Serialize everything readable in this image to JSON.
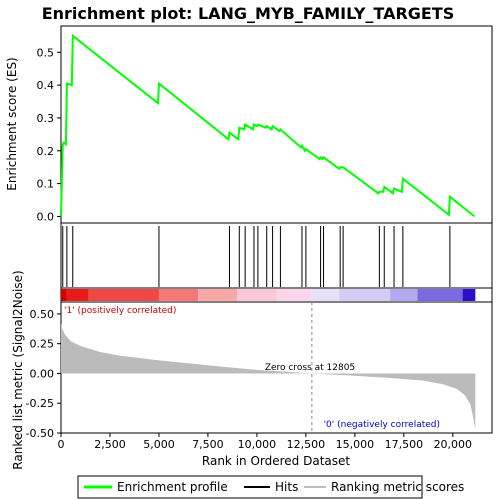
{
  "chart_data": {
    "type": "line",
    "title": "Enrichment plot: LANG_MYB_FAMILY_TARGETS",
    "top_panel": {
      "ylabel": "Enrichment score (ES)",
      "ylim": [
        -0.02,
        0.58
      ],
      "yticks": [
        0.0,
        0.1,
        0.2,
        0.3,
        0.4,
        0.5
      ],
      "ytick_labels": [
        "0.0",
        "0.1",
        "0.2",
        "0.3",
        "0.4",
        "0.5"
      ],
      "series": [
        {
          "name": "Enrichment profile",
          "color": "#00ff00",
          "x": [
            0,
            90,
            150,
            250,
            300,
            550,
            600,
            4950,
            5000,
            8550,
            8600,
            9050,
            9100,
            9350,
            9400,
            9800,
            9850,
            10000,
            10050,
            10450,
            10500,
            10750,
            10800,
            11150,
            11200,
            12250,
            12300,
            12450,
            12500,
            13200,
            13250,
            13350,
            13400,
            14200,
            14250,
            14350,
            14400,
            16200,
            16250,
            16450,
            16500,
            16950,
            17000,
            17400,
            17450,
            19800,
            19850,
            21100
          ],
          "y": [
            0.0,
            0.22,
            0.225,
            0.22,
            0.405,
            0.4,
            0.55,
            0.345,
            0.405,
            0.235,
            0.255,
            0.235,
            0.27,
            0.265,
            0.28,
            0.265,
            0.28,
            0.275,
            0.28,
            0.27,
            0.275,
            0.265,
            0.275,
            0.26,
            0.265,
            0.21,
            0.215,
            0.2,
            0.205,
            0.175,
            0.18,
            0.175,
            0.18,
            0.145,
            0.15,
            0.15,
            0.15,
            0.07,
            0.075,
            0.075,
            0.09,
            0.07,
            0.085,
            0.075,
            0.115,
            0.005,
            0.06,
            0.0
          ]
        }
      ]
    },
    "hits": {
      "name": "Hits",
      "x": [
        90,
        300,
        600,
        5000,
        8600,
        9100,
        9400,
        9850,
        10050,
        10500,
        10800,
        11200,
        12300,
        12500,
        13250,
        13400,
        14250,
        14400,
        16250,
        16500,
        17000,
        17450,
        19850
      ]
    },
    "bottom_panel": {
      "ylabel": "Ranked list metric (Signal2Noise)",
      "ylim": [
        -0.5,
        0.6
      ],
      "yticks": [
        -0.5,
        -0.25,
        0.0,
        0.25,
        0.5
      ],
      "ytick_labels": [
        "-0.50",
        "-0.25",
        "0.00",
        "0.25",
        "0.50"
      ],
      "series": [
        {
          "name": "Ranking metric scores",
          "color": "#bbbbbb",
          "x": [
            0,
            50,
            200,
            500,
            1000,
            2000,
            3000,
            5000,
            8000,
            10000,
            12805,
            15000,
            17000,
            18500,
            19500,
            20200,
            20600,
            20900,
            21050,
            21150
          ],
          "y": [
            0.42,
            0.38,
            0.33,
            0.27,
            0.23,
            0.18,
            0.15,
            0.11,
            0.06,
            0.03,
            0.0,
            -0.02,
            -0.04,
            -0.06,
            -0.09,
            -0.13,
            -0.18,
            -0.26,
            -0.38,
            -0.47
          ]
        }
      ],
      "zero_cross_label": "Zero cross at 12805",
      "zero_cross_x": 12805,
      "pos_label": "'1' (positively correlated)",
      "neg_label": "'0' (negatively correlated)",
      "pos_color": "#cc0000",
      "neg_color": "#0000cc"
    },
    "xlabel": "Rank in Ordered Dataset",
    "xlim": [
      0,
      22000
    ],
    "xticks": [
      0,
      2500,
      5000,
      7500,
      10000,
      12500,
      15000,
      17500,
      20000
    ],
    "xtick_labels": [
      "0",
      "2,500",
      "5,000",
      "7,500",
      "10,000",
      "12,500",
      "15,000",
      "17,500",
      "20,000"
    ],
    "colorbar": {
      "x_end": 21150,
      "segments": [
        {
          "to": 300,
          "color": "#d40000"
        },
        {
          "to": 1400,
          "color": "#ea1a1a"
        },
        {
          "to": 5000,
          "color": "#f04848"
        },
        {
          "to": 7000,
          "color": "#f57878"
        },
        {
          "to": 9000,
          "color": "#f9a8a8"
        },
        {
          "to": 11000,
          "color": "#fcc8d8"
        },
        {
          "to": 12800,
          "color": "#fbd6ea"
        },
        {
          "to": 14200,
          "color": "#e8e0f8"
        },
        {
          "to": 16800,
          "color": "#d4ccf4"
        },
        {
          "to": 18200,
          "color": "#b2a8ee"
        },
        {
          "to": 20500,
          "color": "#7a6ae2"
        },
        {
          "to": 21150,
          "color": "#2a10c8"
        }
      ]
    },
    "legend": {
      "items": [
        {
          "label": "Enrichment profile",
          "color": "#00ff00"
        },
        {
          "label": "Hits",
          "color": "#000000"
        },
        {
          "label": "Ranking metric scores",
          "color": "#bbbbbb"
        }
      ]
    }
  }
}
